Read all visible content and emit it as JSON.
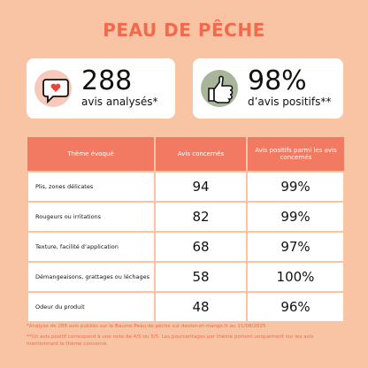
{
  "header": {
    "title": "PEAU DE PÊCHE"
  },
  "stats": [
    {
      "number": "288",
      "label": "avis analysés*"
    },
    {
      "number": "98%",
      "label": "d’avis positifs**"
    }
  ],
  "table": {
    "columns": [
      "Thème évoqué",
      "Avis concernés",
      "Avis positifs parmi les avis concernés"
    ],
    "rows": [
      [
        "Plis, zones délicates",
        94,
        "99%"
      ],
      [
        "Rougeurs ou irritations",
        82,
        "99%"
      ],
      [
        "Texture, facilité d’application",
        68,
        "97%"
      ],
      [
        "Démangeaisons, grattages ou léchages",
        58,
        "100%"
      ],
      [
        "Odeur du produit",
        48,
        "96%"
      ]
    ]
  },
  "footnotes": [
    "*Analyse de 288 avis publiés sur le Baume Peau de pêche sur dexter-et-mango.fr au 11/08/2025",
    "**Un avis positif correspond à une note de 4/5 ou 5/5. Les pourcentages par thème portent uniquement sur les avis mentionnant le thème concerné."
  ]
}
